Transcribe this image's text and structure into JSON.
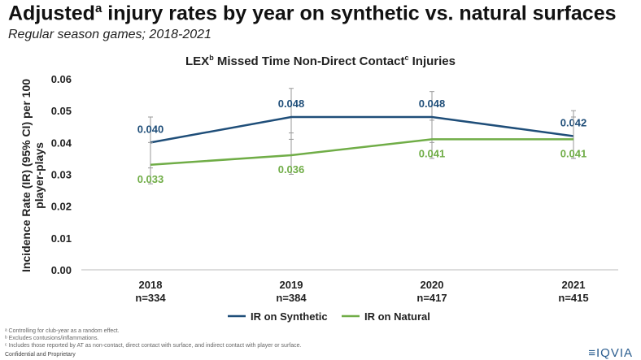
{
  "header": {
    "title": "Adjusted",
    "title_sup": "a",
    "title_rest": " injury rates by year on synthetic vs. natural surfaces",
    "subtitle": "Regular season games; 2018-2021"
  },
  "chart_data": {
    "type": "line",
    "title_parts": [
      "LEX",
      "b",
      " Missed Time Non-Direct Contact",
      "c",
      " Injuries"
    ],
    "ylabel": "Incidence Rate (IR) (95% CI) per 100 player-plays",
    "ylim": [
      0,
      0.06
    ],
    "yticks": [
      "0.00",
      "0.01",
      "0.02",
      "0.03",
      "0.04",
      "0.05",
      "0.06"
    ],
    "categories": [
      "2018",
      "2019",
      "2020",
      "2021"
    ],
    "n_labels": [
      "n=334",
      "n=384",
      "n=417",
      "n=415"
    ],
    "grid": false,
    "legend": "bottom",
    "series": [
      {
        "name": "IR on Synthetic",
        "color": "#1f4e79",
        "values": [
          0.04,
          0.048,
          0.048,
          0.042
        ],
        "labels": [
          "0.040",
          "0.048",
          "0.048",
          "0.042"
        ],
        "ci": [
          [
            0.032,
            0.048
          ],
          [
            0.041,
            0.057
          ],
          [
            0.04,
            0.056
          ],
          [
            0.035,
            0.05
          ]
        ]
      },
      {
        "name": "IR on Natural",
        "color": "#70ad47",
        "values": [
          0.033,
          0.036,
          0.041,
          0.041
        ],
        "labels": [
          "0.033",
          "0.036",
          "0.041",
          "0.041"
        ],
        "ci": [
          [
            0.027,
            0.04
          ],
          [
            0.03,
            0.043
          ],
          [
            0.035,
            0.047
          ],
          [
            0.035,
            0.048
          ]
        ]
      }
    ]
  },
  "footnotes": [
    "ᵃ Controlling for club-year as a random effect.",
    "ᵇ Excludes contusions/inflammations.",
    "ᶜ Includes those reported by AT as non-contact, direct contact with surface, and indirect contact with player or surface."
  ],
  "confidential": "Confidential and Proprietary",
  "logo": "IQVIA"
}
